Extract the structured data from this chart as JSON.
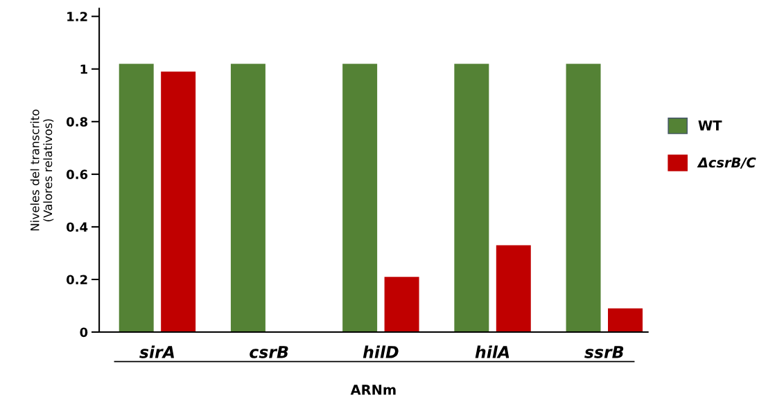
{
  "chart_data": {
    "type": "bar",
    "xlabel": "ARNm",
    "ylabel": "Niveles del transcrito\n(Valores relativos)",
    "categories": [
      "sirA",
      "csrB",
      "hilD",
      "hilA",
      "ssrB"
    ],
    "series": [
      {
        "name": "WT",
        "color": "#548235",
        "values": [
          1.02,
          1.02,
          1.02,
          1.02,
          1.02
        ]
      },
      {
        "name": "ΔcsrB/C",
        "color": "#c00000",
        "values": [
          0.99,
          0,
          0.21,
          0.33,
          0.09
        ]
      }
    ],
    "ylim": [
      0,
      1.23
    ],
    "yticks": [
      0,
      0.2,
      0.4,
      0.6,
      0.8,
      1,
      1.2
    ],
    "grid": false,
    "legend": "right"
  }
}
